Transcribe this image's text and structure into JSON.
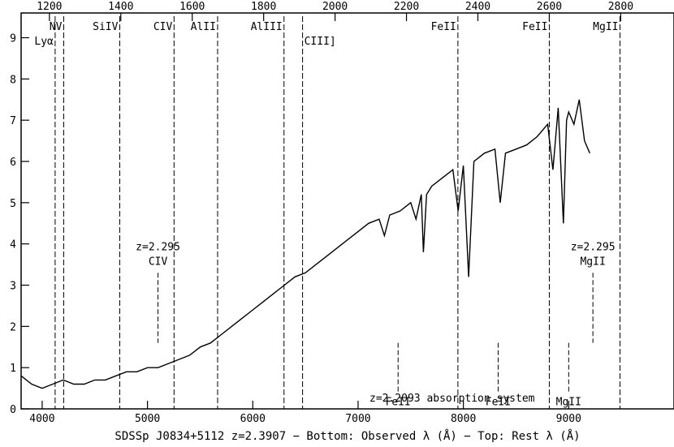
{
  "chart_data": {
    "type": "line",
    "xlabel": "SDSSp J0834+5112 z=2.3907 − Bottom: Observed λ (Å) − Top: Rest λ (Å)",
    "xlim": [
      3800,
      10000
    ],
    "ylim": [
      0,
      9.6
    ],
    "redshift": 2.3907,
    "bottom_ticks": [
      "4000",
      "5000",
      "6000",
      "7000",
      "8000",
      "9000"
    ],
    "top_ticks": [
      "1200",
      "1400",
      "1600",
      "1800",
      "2000",
      "2200",
      "2400",
      "2600",
      "2800"
    ],
    "y_ticks": [
      "0",
      "1",
      "2",
      "3",
      "4",
      "5",
      "6",
      "7",
      "8",
      "9"
    ],
    "spectrum": {
      "x": [
        3800,
        3900,
        4000,
        4100,
        4200,
        4300,
        4400,
        4500,
        4600,
        4700,
        4800,
        4900,
        5000,
        5100,
        5200,
        5300,
        5400,
        5500,
        5600,
        5700,
        5800,
        5900,
        6000,
        6100,
        6200,
        6300,
        6400,
        6500,
        6600,
        6700,
        6800,
        6900,
        7000,
        7100,
        7200,
        7250,
        7300,
        7400,
        7500,
        7550,
        7600,
        7620,
        7650,
        7700,
        7800,
        7900,
        7950,
        8000,
        8050,
        8100,
        8200,
        8300,
        8350,
        8400,
        8500,
        8600,
        8700,
        8800,
        8850,
        8900,
        8950,
        8980,
        9000,
        9050,
        9100,
        9150,
        9200
      ],
      "y": [
        0.8,
        0.6,
        0.5,
        0.6,
        0.7,
        0.6,
        0.6,
        0.7,
        0.7,
        0.8,
        0.9,
        0.9,
        1.0,
        1.0,
        1.1,
        1.2,
        1.3,
        1.5,
        1.6,
        1.8,
        2.0,
        2.2,
        2.4,
        2.6,
        2.8,
        3.0,
        3.2,
        3.3,
        3.5,
        3.7,
        3.9,
        4.1,
        4.3,
        4.5,
        4.6,
        4.2,
        4.7,
        4.8,
        5.0,
        4.6,
        5.2,
        3.8,
        5.2,
        5.4,
        5.6,
        5.8,
        4.8,
        5.9,
        3.2,
        6.0,
        6.2,
        6.3,
        5.0,
        6.2,
        6.3,
        6.4,
        6.6,
        6.9,
        5.8,
        7.3,
        4.5,
        7.0,
        7.2,
        6.9,
        7.5,
        6.5,
        6.2
      ]
    },
    "emission_lines": [
      {
        "label": "Lyα",
        "rest": 1216
      },
      {
        "label": "NV",
        "rest": 1240
      },
      {
        "label": "SiIV",
        "rest": 1397
      },
      {
        "label": "CIV",
        "rest": 1549
      },
      {
        "label": "AlII",
        "rest": 1671
      },
      {
        "label": "AlIII",
        "rest": 1857
      },
      {
        "label": "CIII]",
        "rest": 1909
      },
      {
        "label": "FeII",
        "rest": 2344
      },
      {
        "label": "FeII",
        "rest": 2600
      },
      {
        "label": "MgII",
        "rest": 2798
      }
    ],
    "absorption_annotations": [
      {
        "label": "FeII",
        "observed": 7380
      },
      {
        "label": "FeII",
        "observed": 8330
      },
      {
        "label": "MgII",
        "observed": 9000
      },
      {
        "label": "CIV",
        "observed": 5100,
        "z_label": "z=2.295"
      },
      {
        "label": "MgII",
        "observed": 9230,
        "z_label": "z=2.295"
      }
    ],
    "absorption_system_label": "z=2.2093 absorption system"
  }
}
